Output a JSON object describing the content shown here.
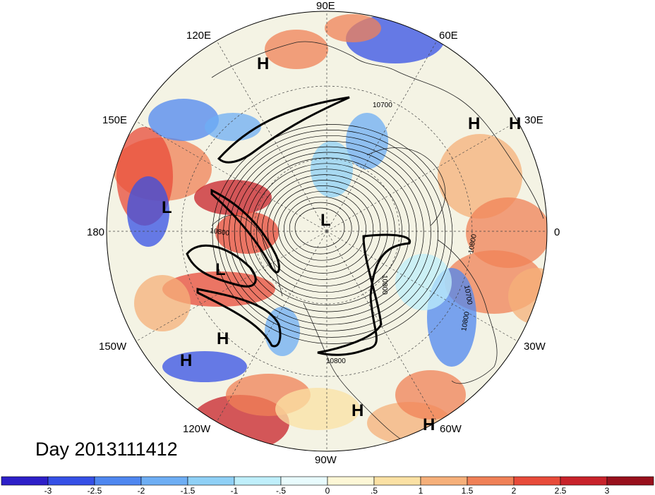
{
  "map": {
    "title": "Day 2013111412",
    "longitude_labels": [
      "90E",
      "60E",
      "30E",
      "0",
      "30W",
      "60W",
      "90W",
      "120W",
      "150W",
      "180",
      "150E",
      "120E"
    ],
    "contour_labels": [
      "10700",
      "10800",
      "10800",
      "10800",
      "10700",
      "10800",
      "10800",
      "10800"
    ],
    "highs_lows": [
      "H",
      "H",
      "H",
      "H",
      "H",
      "H",
      "H",
      "H",
      "L",
      "L",
      "L"
    ],
    "colorbar": {
      "tick_labels": [
        "-3",
        "-2.5",
        "-2",
        "-1.5",
        "-1",
        "-.5",
        "0",
        ".5",
        "1",
        "1.5",
        "2",
        "2.5",
        "3"
      ],
      "colors": [
        "#2d1fc8",
        "#3550e6",
        "#4f87f0",
        "#6eaef4",
        "#8fd0f6",
        "#bfeffb",
        "#e8fbfd",
        "#fdf7d6",
        "#fbe1a4",
        "#f6b07a",
        "#f08157",
        "#e84b3a",
        "#c8222a",
        "#98101c"
      ]
    },
    "palette": {
      "cold": "#4f87f0",
      "warm": "#f08157",
      "neutral": "#f3f6ee"
    }
  }
}
